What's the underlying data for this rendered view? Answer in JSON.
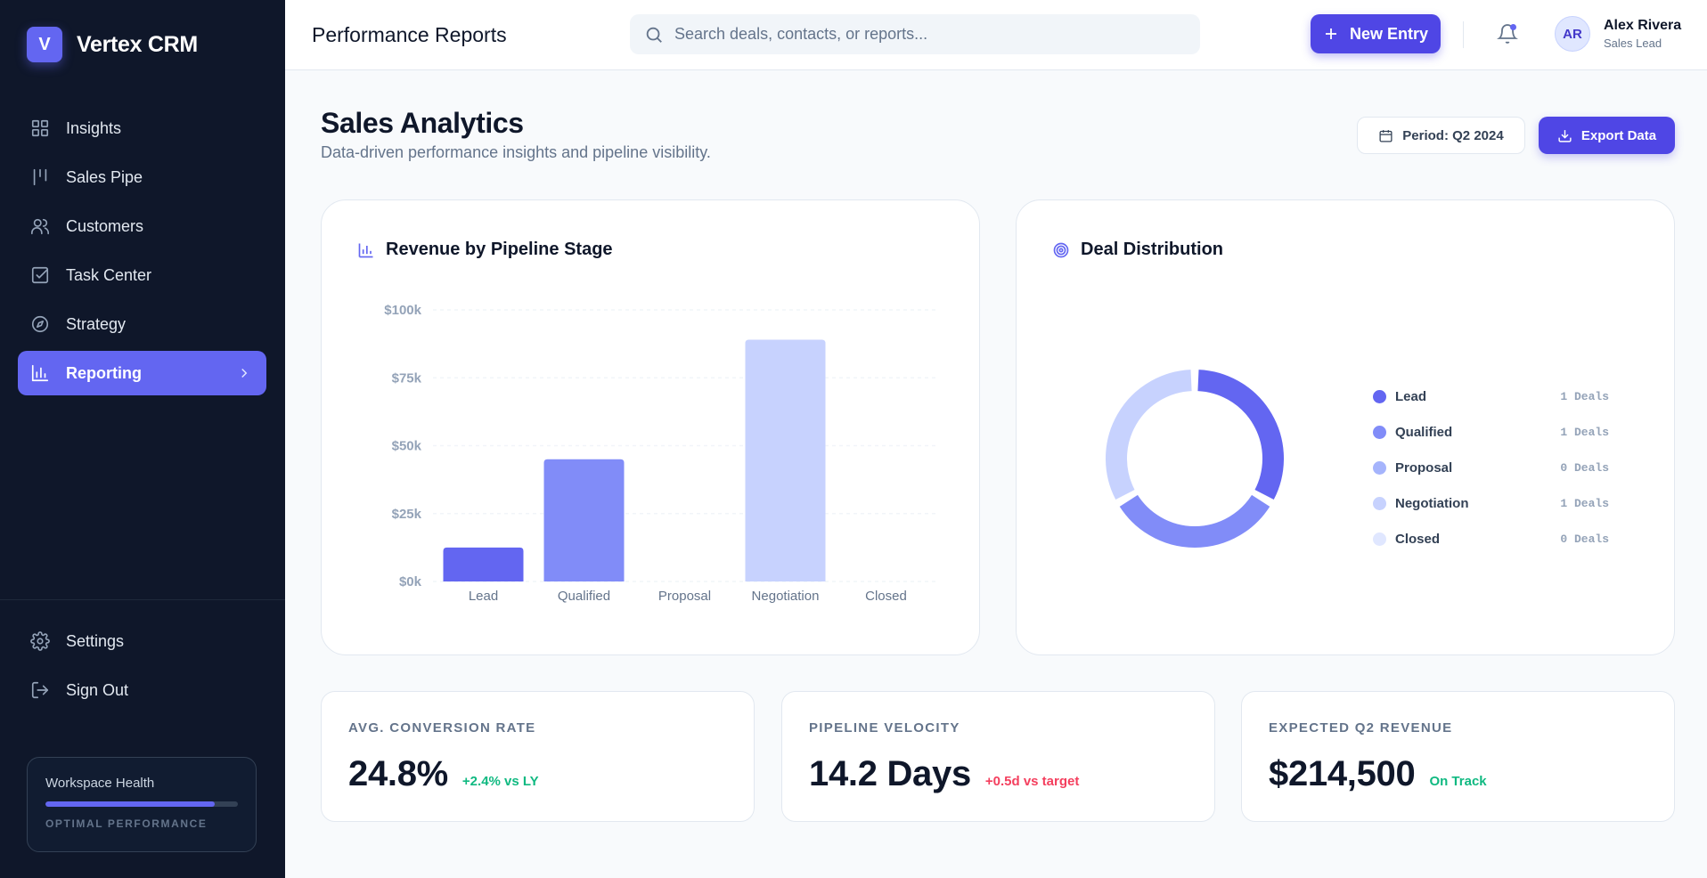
{
  "app": {
    "logo_letter": "V",
    "name": "Vertex CRM"
  },
  "sidebar": {
    "items": [
      {
        "label": "Insights",
        "icon": "grid-icon"
      },
      {
        "label": "Sales Pipe",
        "icon": "pipeline-icon"
      },
      {
        "label": "Customers",
        "icon": "users-icon"
      },
      {
        "label": "Task Center",
        "icon": "checkbox-icon"
      },
      {
        "label": "Strategy",
        "icon": "compass-icon"
      },
      {
        "label": "Reporting",
        "icon": "bar-chart-icon",
        "active": true
      }
    ],
    "bottom_items": [
      {
        "label": "Settings",
        "icon": "gear-icon"
      },
      {
        "label": "Sign Out",
        "icon": "logout-icon"
      }
    ],
    "health": {
      "title": "Workspace Health",
      "progress": 0.88,
      "status": "OPTIMAL PERFORMANCE"
    }
  },
  "topbar": {
    "title": "Performance Reports",
    "search_placeholder": "Search deals, contacts, or reports...",
    "new_entry_label": "New Entry",
    "user": {
      "initials": "AR",
      "name": "Alex Rivera",
      "role": "Sales Lead"
    }
  },
  "header": {
    "title": "Sales Analytics",
    "subtitle": "Data-driven performance insights and pipeline visibility.",
    "period_label": "Period: Q2 2024",
    "export_label": "Export Data"
  },
  "revenue_card": {
    "title": "Revenue by Pipeline Stage"
  },
  "distribution_card": {
    "title": "Deal Distribution"
  },
  "colors": {
    "accent": "#4f46e5",
    "lead": "#6366f1",
    "qualified": "#818cf8",
    "proposal": "#a5b4fc",
    "negotiation": "#c7d2fe",
    "closed": "#e0e7ff",
    "positive": "#10b981",
    "negative": "#f43f5e"
  },
  "chart_data": [
    {
      "type": "bar",
      "title": "Revenue by Pipeline Stage",
      "categories": [
        "Lead",
        "Qualified",
        "Proposal",
        "Negotiation",
        "Closed"
      ],
      "values": [
        12500,
        45000,
        0,
        89000,
        0
      ],
      "yticks": [
        "$0k",
        "$25k",
        "$50k",
        "$75k",
        "$100k"
      ],
      "ylim": [
        0,
        100000
      ],
      "grid": true
    },
    {
      "type": "pie",
      "title": "Deal Distribution",
      "categories": [
        "Lead",
        "Qualified",
        "Proposal",
        "Negotiation",
        "Closed"
      ],
      "values": [
        1,
        1,
        0,
        1,
        0
      ],
      "count_labels": [
        "1 Deals",
        "1 Deals",
        "0 Deals",
        "1 Deals",
        "0 Deals"
      ],
      "legend": "right"
    }
  ],
  "kpis": [
    {
      "label": "AVG. CONVERSION RATE",
      "value": "24.8%",
      "delta": "+2.4% vs LY",
      "tone": "positive"
    },
    {
      "label": "PIPELINE VELOCITY",
      "value": "14.2 Days",
      "delta": "+0.5d vs target",
      "tone": "negative"
    },
    {
      "label": "EXPECTED Q2 REVENUE",
      "value": "$214,500",
      "delta": "On Track",
      "tone": "positive"
    }
  ]
}
